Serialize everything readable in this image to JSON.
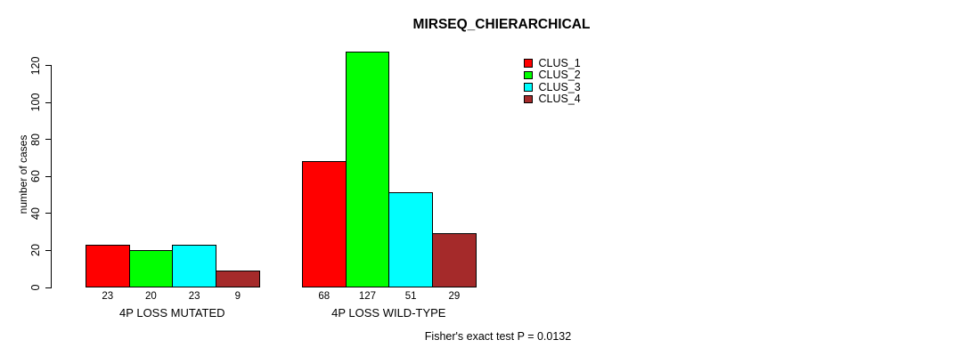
{
  "chart_data": {
    "type": "bar",
    "title": "MIRSEQ_CHIERARCHICAL",
    "xlabel": "",
    "ylabel": "number of cases",
    "footnote": "Fisher's exact test P = 0.0132",
    "categories": [
      "4P LOSS MUTATED",
      "4P LOSS WILD-TYPE"
    ],
    "series": [
      {
        "name": "CLUS_1",
        "color": "#FF0000",
        "values": [
          23,
          68
        ]
      },
      {
        "name": "CLUS_2",
        "color": "#00FF00",
        "values": [
          20,
          127
        ]
      },
      {
        "name": "CLUS_3",
        "color": "#00FFFF",
        "values": [
          23,
          51
        ]
      },
      {
        "name": "CLUS_4",
        "color": "#A52A2A",
        "values": [
          9,
          29
        ]
      }
    ],
    "bar_value_labels": [
      [
        "23",
        "20",
        "23",
        "9"
      ],
      [
        "68",
        "127",
        "51",
        "29"
      ]
    ],
    "yticks": [
      0,
      20,
      40,
      60,
      80,
      100,
      120
    ],
    "ylim": [
      0,
      130
    ],
    "grid": false,
    "legend_position": "top-right",
    "bar_border_color": "#000000",
    "background_color": "#FFFFFF"
  }
}
